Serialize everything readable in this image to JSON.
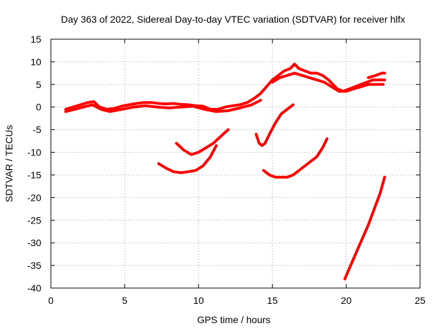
{
  "chart_data": {
    "type": "line",
    "title": "Day 363 of 2022, Sidereal Day-to-day VTEC variation (SDTVAR) for receiver hlfx",
    "xlabel": "GPS time / hours",
    "ylabel": "SDTVAR / TECUs",
    "xlim": [
      0,
      25
    ],
    "ylim": [
      -40,
      15
    ],
    "xticks": [
      0,
      5,
      10,
      15,
      20,
      25
    ],
    "yticks": [
      15,
      10,
      5,
      0,
      -5,
      -10,
      -15,
      -20,
      -25,
      -30,
      -35,
      -40
    ],
    "grid": true,
    "color": "#ff0000",
    "series": [
      {
        "x": [
          1.0,
          1.5,
          2.0,
          2.5,
          2.9,
          3.3,
          3.8,
          4.3,
          4.8,
          5.3,
          5.8,
          6.3,
          6.8,
          7.3,
          7.8,
          8.3,
          8.8,
          9.3,
          9.8,
          10.3,
          10.8,
          11.3,
          11.8,
          12.3,
          12.8,
          13.3,
          13.8,
          14.2,
          14.6,
          15.0,
          15.4,
          15.8,
          16.2,
          16.5,
          16.8,
          17.2,
          17.6,
          18.0,
          18.4,
          18.8,
          19.1,
          19.4,
          19.8,
          20.2,
          20.6,
          21.0,
          21.4,
          21.8,
          22.2,
          22.6
        ],
        "y": [
          -0.5,
          0.0,
          0.5,
          1.0,
          1.2,
          0.0,
          -0.5,
          -0.3,
          0.2,
          0.5,
          0.8,
          1.0,
          1.0,
          0.8,
          0.7,
          0.8,
          0.6,
          0.5,
          0.3,
          0.2,
          -0.5,
          -0.5,
          0.0,
          0.3,
          0.5,
          1.0,
          2.0,
          3.0,
          4.5,
          6.0,
          7.0,
          8.0,
          8.5,
          9.5,
          8.5,
          8.0,
          7.5,
          7.5,
          7.0,
          6.0,
          5.0,
          4.0,
          3.5,
          4.0,
          4.5,
          5.0,
          5.5,
          6.0,
          6.0,
          6.0
        ]
      },
      {
        "x": [
          1.0,
          1.6,
          2.2,
          2.8,
          3.4,
          4.0,
          4.8,
          5.6,
          6.4,
          7.2,
          8.0,
          8.8,
          9.6,
          10.4,
          11.2,
          12.0,
          12.8,
          13.6,
          14.2
        ],
        "y": [
          -1.0,
          -0.5,
          0.0,
          0.5,
          -0.5,
          -1.0,
          -0.5,
          0.0,
          0.3,
          0.0,
          -0.2,
          0.0,
          0.2,
          -0.5,
          -1.0,
          -0.8,
          -0.2,
          0.5,
          1.5
        ]
      },
      {
        "x": [
          15.0,
          15.5,
          16.0,
          16.5,
          17.0,
          17.5,
          18.0,
          18.5,
          19.0,
          19.5,
          20.0,
          20.5,
          21.0,
          21.5,
          22.0,
          22.5
        ],
        "y": [
          5.5,
          6.5,
          7.0,
          7.5,
          7.0,
          6.5,
          6.0,
          5.5,
          4.5,
          3.5,
          3.5,
          4.0,
          4.5,
          5.0,
          5.0,
          5.0
        ]
      },
      {
        "x": [
          21.5,
          22.0,
          22.4,
          22.6
        ],
        "y": [
          6.5,
          7.0,
          7.5,
          7.5
        ]
      },
      {
        "x": [
          8.5,
          9.0,
          9.5,
          10.0,
          10.5,
          11.0,
          11.5,
          12.0
        ],
        "y": [
          -8.0,
          -9.5,
          -10.5,
          -10.0,
          -9.0,
          -8.0,
          -6.5,
          -5.0
        ]
      },
      {
        "x": [
          7.3,
          7.8,
          8.3,
          8.8,
          9.3,
          9.8,
          10.3,
          10.8,
          11.2
        ],
        "y": [
          -12.5,
          -13.5,
          -14.3,
          -14.5,
          -14.3,
          -14.0,
          -13.0,
          -11.0,
          -8.5
        ]
      },
      {
        "x": [
          13.9,
          14.1,
          14.3,
          14.5,
          14.8,
          15.2,
          15.6,
          16.0,
          16.4
        ],
        "y": [
          -6.0,
          -8.0,
          -8.5,
          -8.0,
          -6.0,
          -3.5,
          -1.5,
          -0.5,
          0.5
        ]
      },
      {
        "x": [
          14.4,
          14.8,
          15.2,
          15.6,
          16.0,
          16.4,
          16.8,
          17.2,
          17.6,
          18.0,
          18.4,
          18.7
        ],
        "y": [
          -14.0,
          -15.0,
          -15.5,
          -15.5,
          -15.5,
          -15.0,
          -14.0,
          -13.0,
          -12.0,
          -11.0,
          -9.0,
          -7.0
        ]
      },
      {
        "x": [
          19.9,
          20.3,
          20.7,
          21.1,
          21.5,
          21.9,
          22.3,
          22.6
        ],
        "y": [
          -38.0,
          -35.0,
          -32.0,
          -29.0,
          -26.0,
          -22.5,
          -19.0,
          -15.5
        ]
      }
    ]
  }
}
